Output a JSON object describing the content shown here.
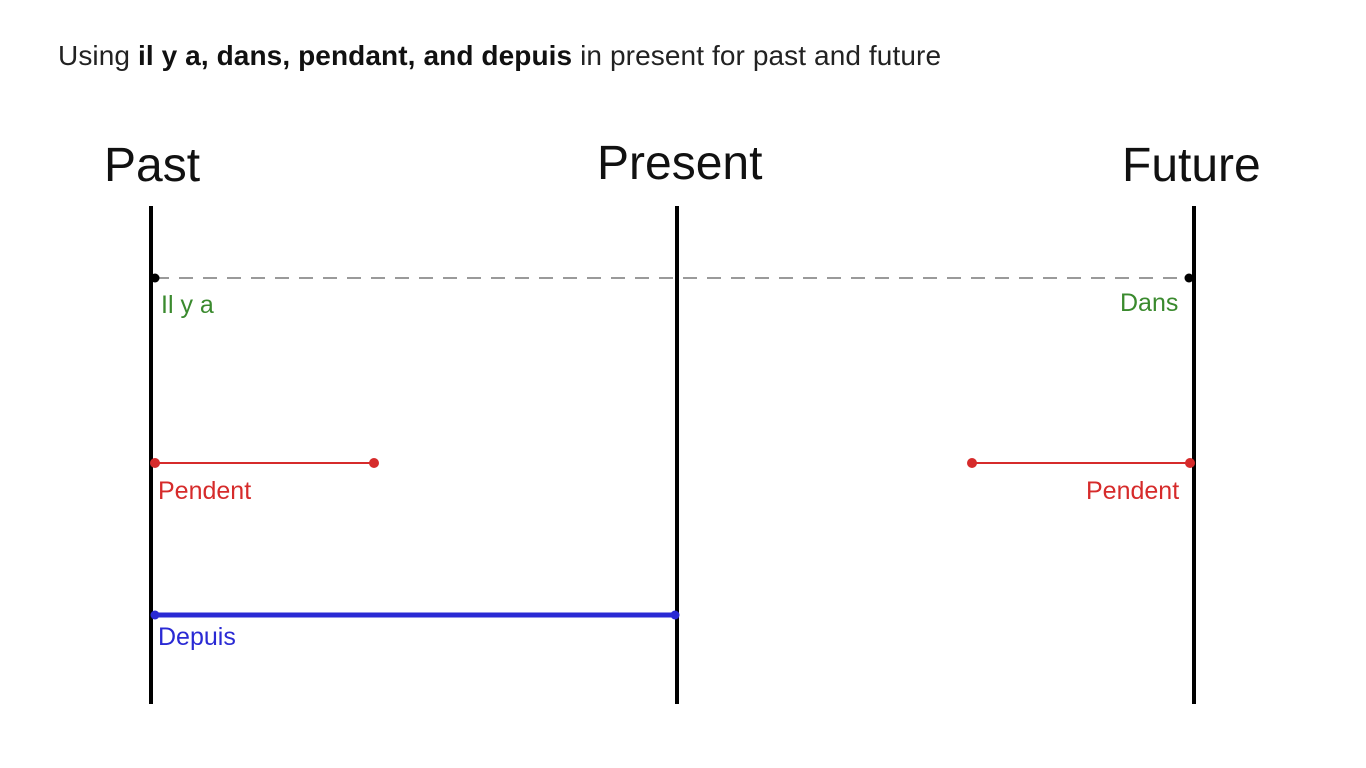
{
  "title": {
    "prefix": "Using ",
    "bold_terms": "il y a, dans, pendant, and depuis",
    "suffix": " in present for past and future"
  },
  "columns": {
    "past": "Past",
    "present": "Present",
    "future": "Future"
  },
  "markers": {
    "il_y_a": "Il y a",
    "dans": "Dans",
    "pendant_past": "Pendent",
    "pendant_future": "Pendent",
    "depuis": "Depuis"
  },
  "colors": {
    "axis": "#000000",
    "il_y_a_dans": "#3a8a2e",
    "dashed_line": "#9a9a9a",
    "pendant": "#d62b2b",
    "depuis": "#2a2ad4"
  }
}
